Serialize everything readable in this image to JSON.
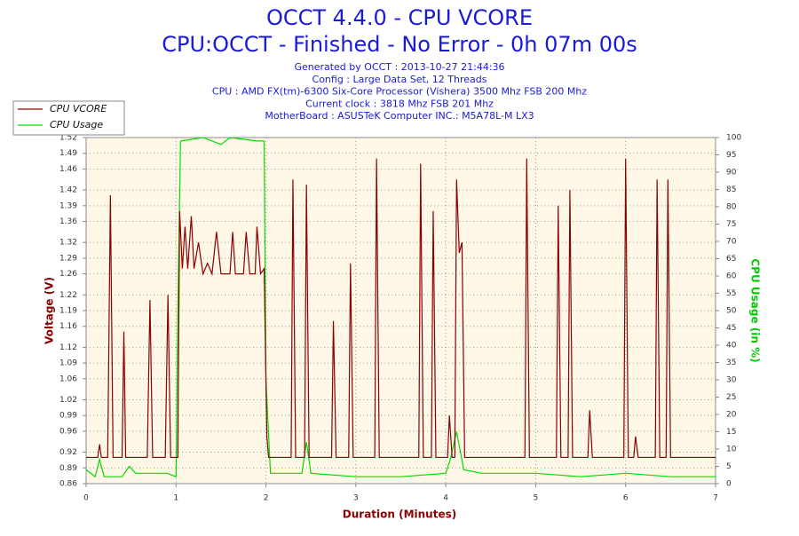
{
  "chart_data": {
    "type": "line",
    "title": "OCCT 4.4.0 - CPU VCORE",
    "subtitle": "CPU:OCCT - Finished - No Error - 0h 07m 00s",
    "info": [
      "Generated by OCCT : 2013-10-27 21:44:36",
      "Config : Large Data Set, 12 Threads",
      "CPU : AMD FX(tm)-6300 Six-Core Processor (Vishera) 3500 Mhz FSB 200 Mhz",
      "Current clock : 3818 Mhz FSB 201 Mhz",
      "MotherBoard : ASUSTeK Computer INC.: M5A78L-M LX3"
    ],
    "xlabel": "Duration (Minutes)",
    "ylabel": "Voltage (V)",
    "y2label": "CPU Usage (in %)",
    "xlim": [
      0,
      7
    ],
    "xticks": [
      0,
      1,
      2,
      3,
      4,
      5,
      6,
      7
    ],
    "ylim": [
      0.86,
      1.52
    ],
    "yticks": [
      0.86,
      0.89,
      0.92,
      0.96,
      0.99,
      1.02,
      1.06,
      1.09,
      1.12,
      1.16,
      1.19,
      1.22,
      1.26,
      1.29,
      1.32,
      1.36,
      1.39,
      1.42,
      1.46,
      1.49,
      1.52
    ],
    "y2lim": [
      0,
      100
    ],
    "y2ticks": [
      0,
      5,
      10,
      15,
      20,
      25,
      30,
      35,
      40,
      45,
      50,
      55,
      60,
      65,
      70,
      75,
      80,
      85,
      90,
      95,
      100
    ],
    "grid": true,
    "legend": "top-left",
    "series": [
      {
        "name": "CPU VCORE",
        "color": "#8b0000",
        "x": [
          0,
          0.13,
          0.15,
          0.17,
          0.24,
          0.27,
          0.3,
          0.4,
          0.42,
          0.44,
          0.68,
          0.71,
          0.74,
          0.88,
          0.91,
          0.94,
          1.02,
          1.04,
          1.07,
          1.1,
          1.13,
          1.17,
          1.2,
          1.25,
          1.3,
          1.35,
          1.4,
          1.45,
          1.5,
          1.6,
          1.63,
          1.66,
          1.75,
          1.78,
          1.82,
          1.88,
          1.9,
          1.94,
          1.98,
          2.01,
          2.03,
          2.28,
          2.3,
          2.33,
          2.43,
          2.45,
          2.48,
          2.73,
          2.75,
          2.78,
          2.92,
          2.94,
          2.97,
          3.21,
          3.23,
          3.26,
          3.7,
          3.72,
          3.75,
          3.84,
          3.86,
          3.89,
          4.02,
          4.04,
          4.07,
          4.1,
          4.12,
          4.15,
          4.18,
          4.21,
          4.88,
          4.9,
          4.93,
          5.23,
          5.25,
          5.28,
          5.36,
          5.38,
          5.41,
          5.58,
          5.6,
          5.63,
          5.98,
          6.0,
          6.03,
          6.09,
          6.11,
          6.14,
          6.33,
          6.35,
          6.38,
          6.45,
          6.47,
          6.5,
          7
        ],
        "values": [
          0.91,
          0.91,
          0.935,
          0.91,
          0.91,
          1.41,
          0.91,
          0.91,
          1.15,
          0.91,
          0.91,
          1.21,
          0.91,
          0.91,
          1.22,
          0.91,
          0.91,
          1.38,
          1.27,
          1.35,
          1.27,
          1.37,
          1.27,
          1.32,
          1.26,
          1.28,
          1.26,
          1.34,
          1.26,
          1.26,
          1.34,
          1.26,
          1.26,
          1.34,
          1.26,
          1.26,
          1.35,
          1.26,
          1.27,
          0.95,
          0.91,
          0.91,
          1.44,
          0.91,
          0.91,
          1.43,
          0.91,
          0.91,
          1.17,
          0.91,
          0.91,
          1.28,
          0.91,
          0.91,
          1.48,
          0.91,
          0.91,
          1.47,
          0.91,
          0.91,
          1.38,
          0.91,
          0.91,
          0.99,
          0.91,
          0.91,
          1.44,
          1.3,
          1.32,
          0.91,
          0.91,
          1.48,
          0.91,
          0.91,
          1.39,
          0.91,
          0.91,
          1.42,
          0.91,
          0.91,
          1.0,
          0.91,
          0.91,
          1.48,
          0.91,
          0.91,
          0.95,
          0.91,
          0.91,
          1.44,
          0.91,
          0.91,
          1.44,
          0.91,
          0.91
        ]
      },
      {
        "name": "CPU Usage",
        "color": "#00dd00",
        "axis": "y2",
        "x": [
          0,
          0.1,
          0.15,
          0.2,
          0.4,
          0.48,
          0.55,
          0.9,
          1.0,
          1.02,
          1.05,
          1.3,
          1.5,
          1.6,
          1.9,
          1.98,
          2.0,
          2.05,
          2.4,
          2.45,
          2.5,
          3.0,
          3.5,
          4.0,
          4.05,
          4.12,
          4.2,
          4.4,
          5.0,
          5.5,
          6.0,
          6.5,
          7
        ],
        "values": [
          4,
          2,
          7,
          2,
          2,
          5,
          3,
          3,
          2,
          50,
          99,
          100,
          98,
          100,
          99,
          99,
          30,
          3,
          3,
          12,
          3,
          2,
          2,
          3,
          7,
          15,
          4,
          3,
          3,
          2,
          3,
          2,
          2
        ]
      }
    ]
  }
}
